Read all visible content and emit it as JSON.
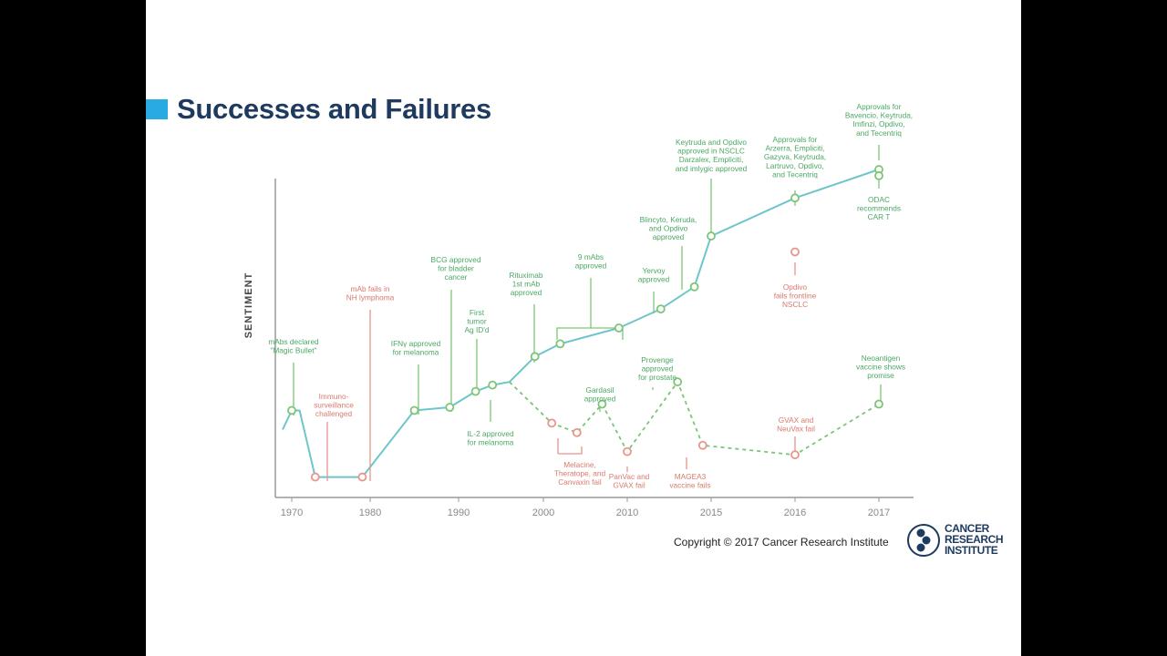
{
  "slide": {
    "title": "Successes and Failures",
    "copyright": "Copyright © 2017 Cancer Research Institute",
    "logo_lines": [
      "CANCER",
      "RESEARCH",
      "INSTITUTE"
    ]
  },
  "colors": {
    "title": "#1e3a5f",
    "accent": "#29abe2",
    "success_line": "#6ec6ca",
    "success_marker": "#7cc576",
    "failure_marker": "#e8958c",
    "success_text": "#4aa864",
    "failure_text": "#d97a6e",
    "axis": "#999999",
    "logo": "#1e3a5f"
  },
  "chart_data": {
    "type": "line",
    "ylabel": "SENTIMENT",
    "x_ticks": [
      "1970",
      "1980",
      "1990",
      "2000",
      "2010",
      "2015",
      "2016",
      "2017"
    ],
    "series": [
      {
        "name": "",
        "style": "solid",
        "points": [
          {
            "x": "1969",
            "y": 0.18
          },
          {
            "x": "1970",
            "y": 0.24
          },
          {
            "x": "1971",
            "y": 0.24
          },
          {
            "x": "1973",
            "y": 0.03
          },
          {
            "x": "1979",
            "y": 0.03
          },
          {
            "x": "1985",
            "y": 0.24
          },
          {
            "x": "1989",
            "y": 0.25
          },
          {
            "x": "1992",
            "y": 0.3
          },
          {
            "x": "1994",
            "y": 0.32
          },
          {
            "x": "1996",
            "y": 0.33
          },
          {
            "x": "1999",
            "y": 0.41
          },
          {
            "x": "2002",
            "y": 0.45
          },
          {
            "x": "2009",
            "y": 0.5
          },
          {
            "x": "2012",
            "y": 0.56
          },
          {
            "x": "2014",
            "y": 0.63
          },
          {
            "x": "2015",
            "y": 0.79
          },
          {
            "x": "2016",
            "y": 0.91
          },
          {
            "x": "2017",
            "y": 1.0
          }
        ]
      },
      {
        "name": "",
        "style": "dashed",
        "points": [
          {
            "x": "1996",
            "y": 0.33
          },
          {
            "x": "2001",
            "y": 0.2
          },
          {
            "x": "2004",
            "y": 0.17
          },
          {
            "x": "2007",
            "y": 0.26
          },
          {
            "x": "2010",
            "y": 0.11
          },
          {
            "x": "2013",
            "y": 0.33
          },
          {
            "x": "2014.5",
            "y": 0.13
          },
          {
            "x": "2016",
            "y": 0.1
          },
          {
            "x": "2017",
            "y": 0.26
          }
        ]
      }
    ],
    "markers": [
      {
        "type": "success",
        "x": "1970",
        "y": 0.24
      },
      {
        "type": "failure",
        "x": "1973",
        "y": 0.03
      },
      {
        "type": "failure",
        "x": "1979",
        "y": 0.03
      },
      {
        "type": "success",
        "x": "1985",
        "y": 0.24
      },
      {
        "type": "success",
        "x": "1989",
        "y": 0.25
      },
      {
        "type": "success",
        "x": "1992",
        "y": 0.3
      },
      {
        "type": "success",
        "x": "1994",
        "y": 0.32
      },
      {
        "type": "success",
        "x": "1999",
        "y": 0.41
      },
      {
        "type": "success",
        "x": "2002",
        "y": 0.45
      },
      {
        "type": "success",
        "x": "2009",
        "y": 0.5
      },
      {
        "type": "success",
        "x": "2012",
        "y": 0.56
      },
      {
        "type": "success",
        "x": "2014",
        "y": 0.63
      },
      {
        "type": "success",
        "x": "2015",
        "y": 0.79
      },
      {
        "type": "success",
        "x": "2016",
        "y": 0.91
      },
      {
        "type": "success",
        "x": "2017",
        "y": 1.0
      },
      {
        "type": "success",
        "x": "2017",
        "y": 0.98
      },
      {
        "type": "failure",
        "x": "2016",
        "y": 0.74
      },
      {
        "type": "failure",
        "x": "2001",
        "y": 0.2
      },
      {
        "type": "failure",
        "x": "2004",
        "y": 0.17
      },
      {
        "type": "success",
        "x": "2007",
        "y": 0.26
      },
      {
        "type": "failure",
        "x": "2010",
        "y": 0.11
      },
      {
        "type": "success",
        "x": "2013",
        "y": 0.33
      },
      {
        "type": "failure",
        "x": "2014.5",
        "y": 0.13
      },
      {
        "type": "failure",
        "x": "2016",
        "y": 0.1
      },
      {
        "type": "success",
        "x": "2017",
        "y": 0.26
      }
    ],
    "annotations": [
      {
        "type": "success",
        "lines": [
          "mAbs declared",
          "\"Magic Bullet\""
        ]
      },
      {
        "type": "failure",
        "lines": [
          "Immuno-",
          "surveillance",
          "challenged"
        ]
      },
      {
        "type": "failure",
        "lines": [
          "mAb fails in",
          "NH lymphoma"
        ]
      },
      {
        "type": "success",
        "lines": [
          "IFNγ approved",
          "for melanoma"
        ]
      },
      {
        "type": "success",
        "lines": [
          "BCG approved",
          "for bladder",
          "cancer"
        ]
      },
      {
        "type": "success",
        "lines": [
          "First",
          "tumor",
          "Ag ID'd"
        ]
      },
      {
        "type": "success",
        "lines": [
          "IL-2 approved",
          "for melanoma"
        ]
      },
      {
        "type": "success",
        "lines": [
          "Rituximab",
          "1st mAb",
          "approved"
        ]
      },
      {
        "type": "success",
        "lines": [
          "9 mAbs",
          "approved"
        ]
      },
      {
        "type": "success",
        "lines": [
          "Yervoy",
          "approved"
        ]
      },
      {
        "type": "success",
        "lines": [
          "Blincyto, Keruda,",
          "and Opdivo",
          "approved"
        ]
      },
      {
        "type": "success",
        "lines": [
          "Keytruda and Opdivo",
          "approved in NSCLC",
          "Darzalex, Empliciti,",
          "and imlygic approved"
        ]
      },
      {
        "type": "success",
        "lines": [
          "Approvals for",
          "Arzerra, Empliciti,",
          "Gazyva, Keytruda,",
          "Lartruvo, Opdivo,",
          "and Tecentriq"
        ]
      },
      {
        "type": "success",
        "lines": [
          "Approvals for",
          "Bavencio, Keytruda,",
          "Imfinzi, Opdivo,",
          "and Tecentriq"
        ]
      },
      {
        "type": "success",
        "lines": [
          "ODAC",
          "recommends",
          "CAR T"
        ]
      },
      {
        "type": "failure",
        "lines": [
          "Opdivo",
          "fails frontline",
          "NSCLC"
        ]
      },
      {
        "type": "failure",
        "lines": [
          "Melacine,",
          "Theratope, and",
          "Canvaxin fail"
        ]
      },
      {
        "type": "success",
        "lines": [
          "Gardasil",
          "approved"
        ]
      },
      {
        "type": "failure",
        "lines": [
          "PanVac and",
          "GVAX fail"
        ]
      },
      {
        "type": "success",
        "lines": [
          "Provenge",
          "approved",
          "for prostate"
        ]
      },
      {
        "type": "failure",
        "lines": [
          "MAGEA3",
          "vaccine fails"
        ]
      },
      {
        "type": "failure",
        "lines": [
          "GVAX and",
          "NeuVax fail"
        ]
      },
      {
        "type": "success",
        "lines": [
          "Neoantigen",
          "vaccine shows",
          "promise"
        ]
      }
    ]
  }
}
